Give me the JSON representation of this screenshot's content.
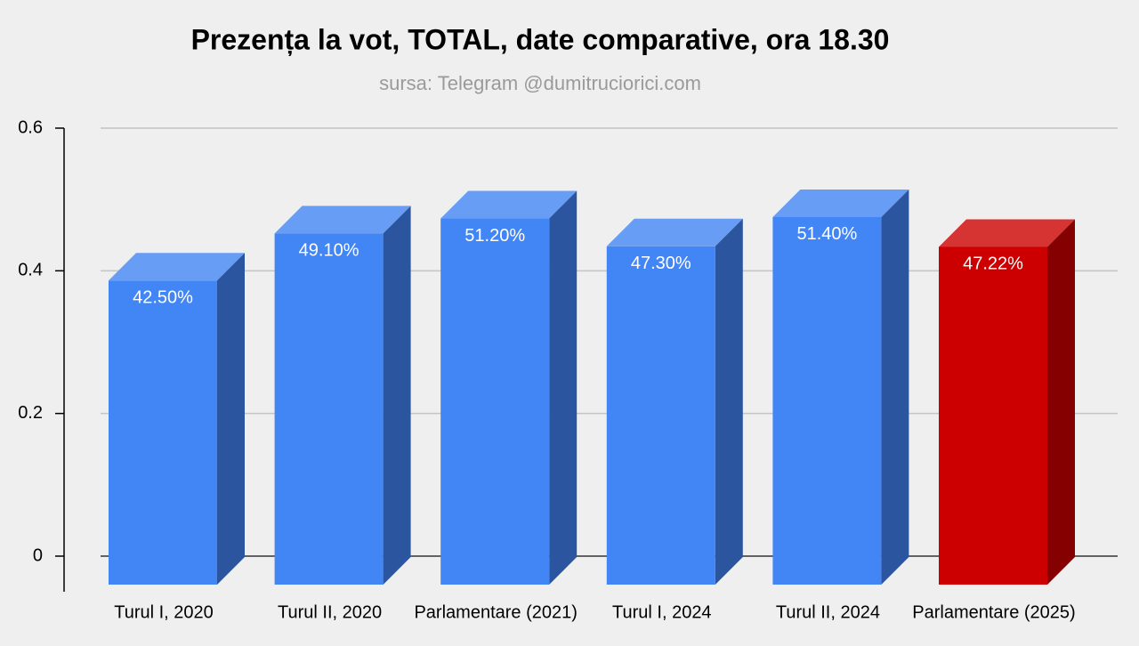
{
  "chart_data": {
    "type": "bar3d",
    "title": "Prezența la vot, TOTAL, date comparative, ora 18.30",
    "subtitle": "sursa: Telegram @dumitruciorici.com",
    "categories": [
      "Turul I, 2020",
      "Turul II, 2020",
      "Parlamentare (2021)",
      "Turul I, 2024",
      "Turul II, 2024",
      "Parlamentare (2025)"
    ],
    "values": [
      0.425,
      0.491,
      0.512,
      0.473,
      0.514,
      0.4722
    ],
    "value_labels": [
      "42.50%",
      "49.10%",
      "51.20%",
      "47.30%",
      "51.40%",
      "47.22%"
    ],
    "colors": [
      "#4285f4",
      "#4285f4",
      "#4285f4",
      "#4285f4",
      "#4285f4",
      "#cc0000"
    ],
    "ylim": [
      0,
      0.6
    ],
    "yticks": [
      0,
      0.2,
      0.4,
      0.6
    ],
    "grid": true
  }
}
